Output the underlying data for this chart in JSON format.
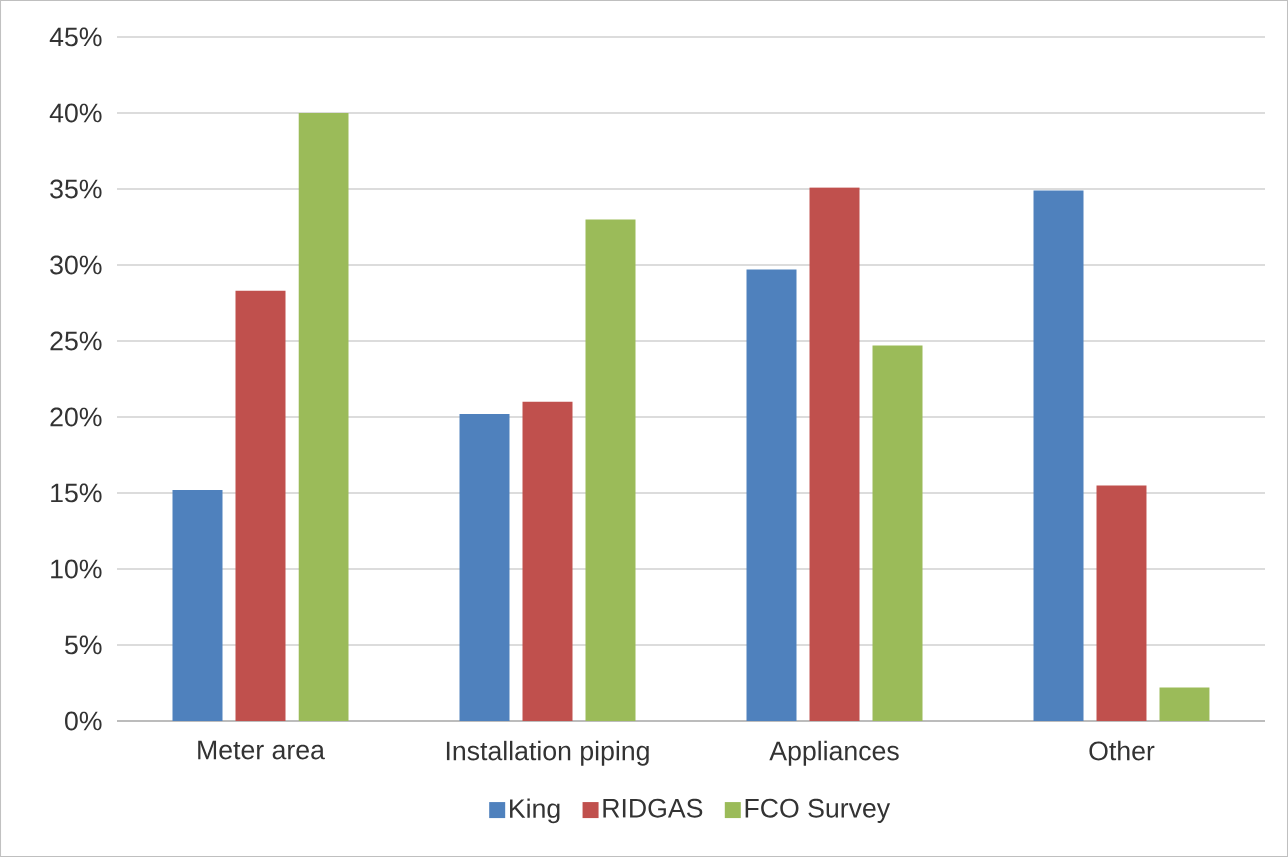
{
  "chart_data": {
    "type": "bar",
    "categories": [
      "Meter area",
      "Installation piping",
      "Appliances",
      "Other"
    ],
    "series": [
      {
        "name": "King",
        "color": "#4f81bd",
        "values": [
          15.2,
          20.2,
          29.7,
          34.9
        ]
      },
      {
        "name": "RIDGAS",
        "color": "#c0504d",
        "values": [
          28.3,
          21.0,
          35.1,
          15.5
        ]
      },
      {
        "name": "FCO Survey",
        "color": "#9bbb59",
        "values": [
          40.0,
          33.0,
          24.7,
          2.2
        ]
      }
    ],
    "ylim": [
      0,
      45
    ],
    "yticks": [
      {
        "value": 0,
        "label": "0%"
      },
      {
        "value": 5,
        "label": "5%"
      },
      {
        "value": 10,
        "label": "10%"
      },
      {
        "value": 15,
        "label": "15%"
      },
      {
        "value": 20,
        "label": "20%"
      },
      {
        "value": 25,
        "label": "25%"
      },
      {
        "value": 30,
        "label": "30%"
      },
      {
        "value": 35,
        "label": "35%"
      },
      {
        "value": 40,
        "label": "40%"
      },
      {
        "value": 45,
        "label": "45%"
      }
    ],
    "grid": "y",
    "legend": "bottom"
  }
}
